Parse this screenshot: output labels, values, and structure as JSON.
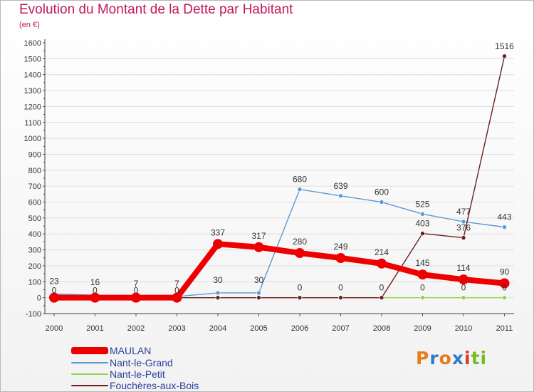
{
  "title": "Evolution du Montant de la Dette par Habitant",
  "subtitle": "(en €)",
  "logo_text": "Proxiti",
  "logo_colors": [
    "#e57c1e",
    "#2f7ec2",
    "#e57c1e",
    "#2f7ec2",
    "#d83a2e",
    "#7aba2a",
    "#7aba2a"
  ],
  "chart_data": {
    "type": "line",
    "title": "Evolution du Montant de la Dette par Habitant",
    "ylabel": "(en €)",
    "xlabel": "",
    "ylim": [
      -100,
      1600
    ],
    "yticks": [
      -100,
      0,
      100,
      200,
      300,
      400,
      500,
      600,
      700,
      800,
      900,
      1000,
      1100,
      1200,
      1300,
      1400,
      1500,
      1600
    ],
    "categories": [
      "2000",
      "2001",
      "2002",
      "2003",
      "2004",
      "2005",
      "2006",
      "2007",
      "2008",
      "2009",
      "2010",
      "2011"
    ],
    "grid": "horizontal",
    "series": [
      {
        "name": "MAULAN",
        "color": "#ee0000",
        "values": [
          0,
          0,
          0,
          0,
          337,
          317,
          280,
          249,
          214,
          145,
          114,
          90
        ]
      },
      {
        "name": "Nant-le-Grand",
        "color": "#5b9bd5",
        "values": [
          23,
          16,
          7,
          7,
          30,
          30,
          680,
          639,
          600,
          525,
          477,
          443
        ]
      },
      {
        "name": "Nant-le-Petit",
        "color": "#8fd44a",
        "values": [
          0,
          0,
          0,
          0,
          0,
          0,
          0,
          0,
          0,
          0,
          0,
          0
        ]
      },
      {
        "name": "Fouchères-aux-Bois",
        "color": "#6b1f1f",
        "values": [
          0,
          0,
          0,
          0,
          0,
          0,
          0,
          0,
          0,
          403,
          376,
          1516
        ]
      }
    ]
  }
}
